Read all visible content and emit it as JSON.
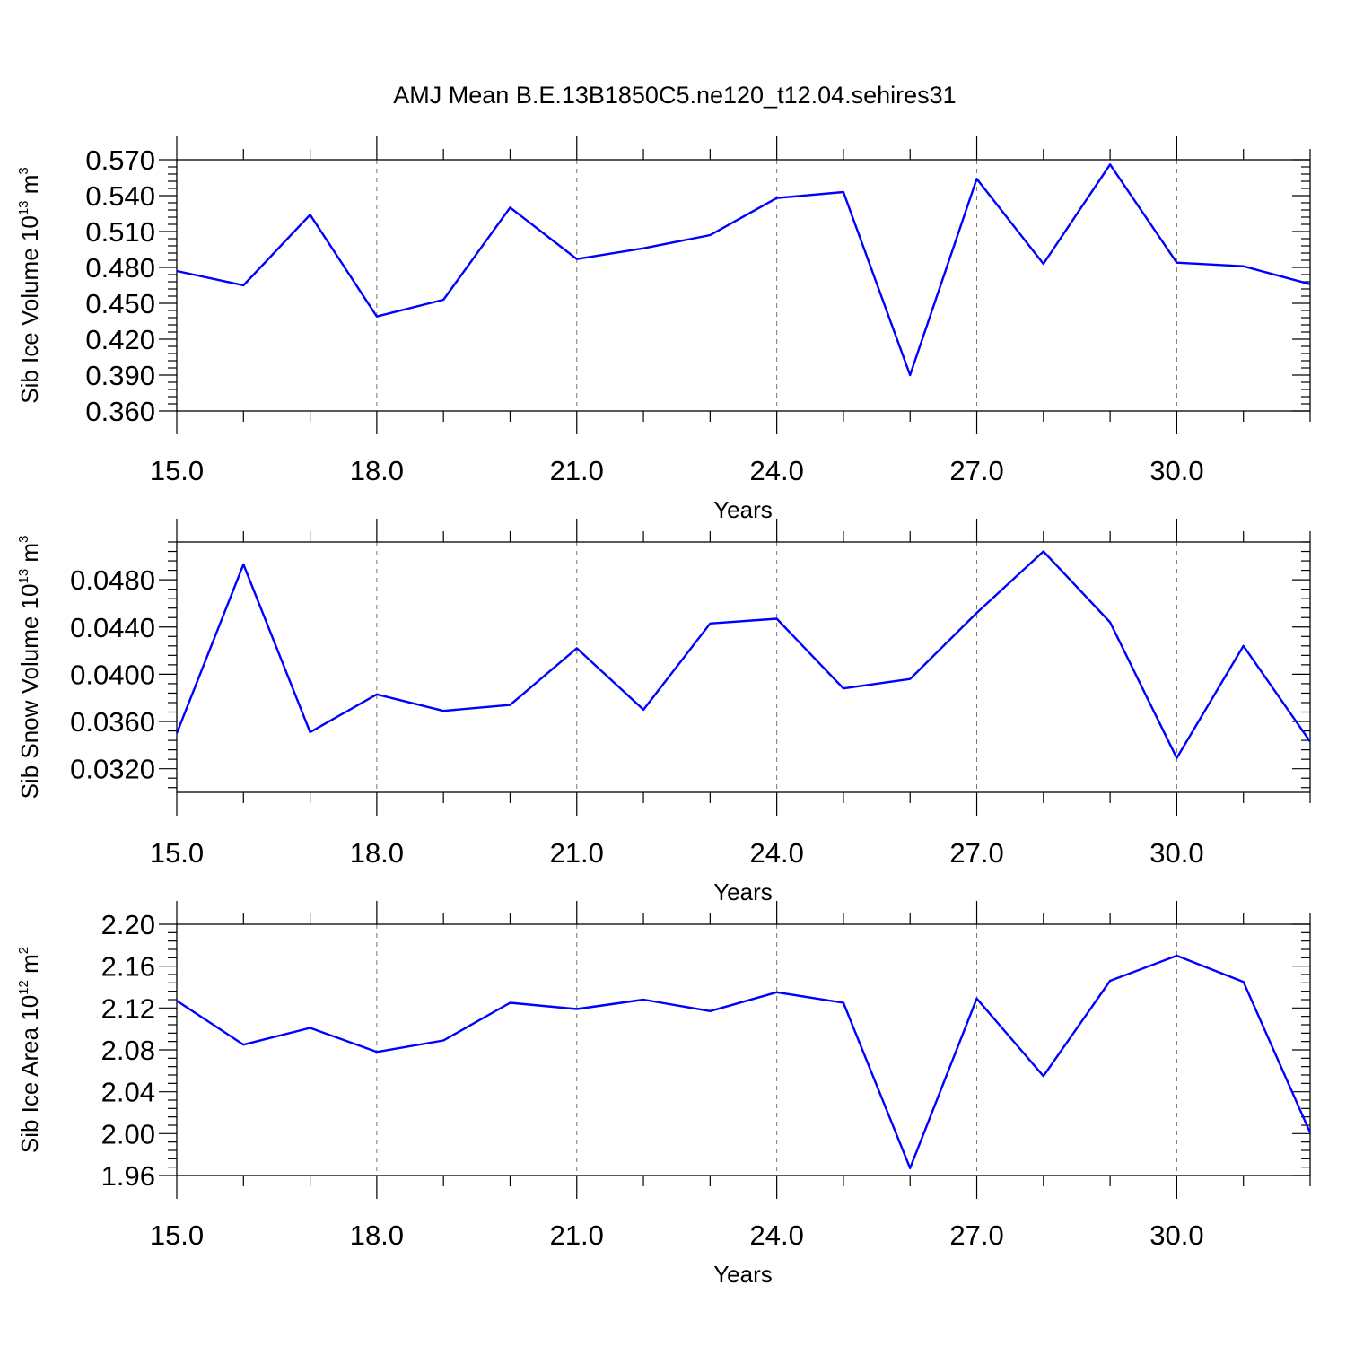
{
  "title": "AMJ Mean B.E.13B1850C5.ne120_t12.04.sehires31",
  "chart_data": [
    {
      "type": "line",
      "ylabel": {
        "prefix": "Sib Ice Volume 10",
        "exp": "13",
        "unit": " m",
        "unit_exp": "3"
      },
      "xlabel": "Years",
      "xlim": [
        15,
        32
      ],
      "ylim": [
        0.36,
        0.57
      ],
      "x_ticks": [
        "15.0",
        "18.0",
        "21.0",
        "24.0",
        "27.0",
        "30.0"
      ],
      "y_ticks": [
        "0.360",
        "0.390",
        "0.420",
        "0.450",
        "0.480",
        "0.510",
        "0.540",
        "0.570"
      ],
      "x": [
        15,
        16,
        17,
        18,
        19,
        20,
        21,
        22,
        23,
        24,
        25,
        26,
        27,
        28,
        29,
        30,
        31,
        32
      ],
      "series": [
        {
          "values": [
            0.477,
            0.465,
            0.524,
            0.439,
            0.453,
            0.53,
            0.487,
            0.496,
            0.507,
            0.538,
            0.543,
            0.39,
            0.554,
            0.483,
            0.566,
            0.484,
            0.481,
            0.466
          ]
        }
      ],
      "color": "#0000ff",
      "grid": "dashed vertical lines at major x ticks"
    },
    {
      "type": "line",
      "ylabel": {
        "prefix": "Sib Snow Volume 10",
        "exp": "13",
        "unit": " m",
        "unit_exp": "3"
      },
      "xlabel": "Years",
      "xlim": [
        15,
        32
      ],
      "ylim": [
        0.03,
        0.0512
      ],
      "x_ticks": [
        "15.0",
        "18.0",
        "21.0",
        "24.0",
        "27.0",
        "30.0"
      ],
      "y_ticks": [
        "0.0320",
        "0.0360",
        "0.0400",
        "0.0440",
        "0.0480"
      ],
      "y_tick_values": [
        0.032,
        0.036,
        0.04,
        0.044,
        0.048
      ],
      "x": [
        15,
        16,
        17,
        18,
        19,
        20,
        21,
        22,
        23,
        24,
        25,
        26,
        27,
        28,
        29,
        30,
        31,
        32
      ],
      "series": [
        {
          "values": [
            0.035,
            0.0493,
            0.0351,
            0.0383,
            0.0369,
            0.0374,
            0.0422,
            0.037,
            0.0443,
            0.0447,
            0.0388,
            0.0396,
            0.0452,
            0.0504,
            0.0444,
            0.0329,
            0.0424,
            0.0343
          ]
        }
      ],
      "color": "#0000ff",
      "grid": "dashed vertical lines at major x ticks"
    },
    {
      "type": "line",
      "ylabel": {
        "prefix": "Sib Ice Area 10",
        "exp": "12",
        "unit": " m",
        "unit_exp": "2"
      },
      "xlabel": "Years",
      "xlim": [
        15,
        32
      ],
      "ylim": [
        1.96,
        2.2
      ],
      "x_ticks": [
        "15.0",
        "18.0",
        "21.0",
        "24.0",
        "27.0",
        "30.0"
      ],
      "y_ticks": [
        "1.96",
        "2.00",
        "2.04",
        "2.08",
        "2.12",
        "2.16",
        "2.20"
      ],
      "x": [
        15,
        16,
        17,
        18,
        19,
        20,
        21,
        22,
        23,
        24,
        25,
        26,
        27,
        28,
        29,
        30,
        31,
        32
      ],
      "series": [
        {
          "values": [
            2.127,
            2.085,
            2.101,
            2.078,
            2.089,
            2.125,
            2.119,
            2.128,
            2.117,
            2.135,
            2.125,
            1.967,
            2.129,
            2.055,
            2.146,
            2.17,
            2.145,
            2.001
          ]
        }
      ],
      "color": "#0000ff",
      "grid": "dashed vertical lines at major x ticks"
    }
  ]
}
